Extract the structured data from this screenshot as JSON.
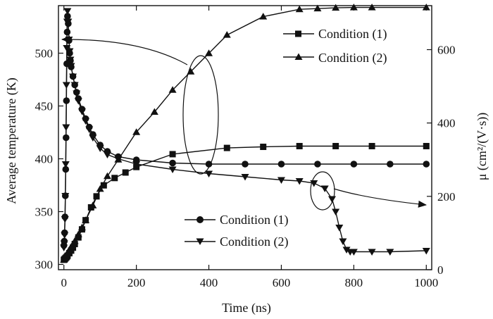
{
  "chart_data": {
    "type": "line",
    "xlabel": "Time (ns)",
    "ylabel_left": "Average temperature (K)",
    "ylabel_right": "μ (cm²/(V·s))",
    "xlim": [
      -15,
      1015
    ],
    "ylim_left": [
      295,
      545
    ],
    "ylim_right": [
      0,
      720
    ],
    "x_ticks": [
      0,
      200,
      400,
      600,
      800,
      1000
    ],
    "y_left_ticks": [
      300,
      350,
      400,
      450,
      500
    ],
    "y_right_ticks": [
      0,
      200,
      400,
      600
    ],
    "grid": false,
    "legend_right": {
      "placement": "top-right",
      "entries": [
        {
          "label": "Condition (1)",
          "marker": "square"
        },
        {
          "label": "Condition (2)",
          "marker": "triangle-up"
        }
      ]
    },
    "legend_left": {
      "placement": "bottom-center",
      "entries": [
        {
          "label": "Condition (1)",
          "marker": "circle"
        },
        {
          "label": "Condition (2)",
          "marker": "triangle-down"
        }
      ]
    },
    "series": [
      {
        "name": "Condition (1)",
        "axis": "right",
        "marker": "square",
        "x": [
          0,
          2,
          4,
          6,
          8,
          10,
          15,
          20,
          25,
          30,
          40,
          50,
          60,
          75,
          90,
          110,
          140,
          170,
          200,
          300,
          450,
          550,
          650,
          750,
          850,
          1000
        ],
        "y": [
          27,
          29,
          31,
          33,
          35,
          38,
          45,
          52,
          60,
          70,
          88,
          110,
          135,
          170,
          200,
          230,
          250,
          265,
          280,
          315,
          332,
          335,
          337,
          337,
          337,
          337
        ]
      },
      {
        "name": "Condition (2)",
        "axis": "right",
        "marker": "triangle-up",
        "x": [
          0,
          2,
          4,
          6,
          8,
          10,
          15,
          20,
          30,
          40,
          50,
          60,
          80,
          100,
          120,
          150,
          200,
          250,
          300,
          350,
          400,
          450,
          550,
          650,
          700,
          750,
          800,
          850,
          1000
        ],
        "y": [
          27,
          30,
          33,
          37,
          41,
          46,
          54,
          62,
          78,
          96,
          115,
          135,
          175,
          220,
          255,
          300,
          375,
          430,
          490,
          540,
          590,
          640,
          690,
          710,
          712,
          714,
          715,
          715,
          715
        ]
      },
      {
        "name": "Condition (1)",
        "axis": "left",
        "marker": "circle",
        "x": [
          0,
          1,
          2,
          3,
          4,
          5,
          6,
          7,
          8,
          9,
          10,
          12,
          14,
          16,
          18,
          20,
          25,
          30,
          35,
          40,
          50,
          60,
          70,
          80,
          100,
          120,
          150,
          200,
          300,
          400,
          500,
          600,
          700,
          800,
          900,
          1000
        ],
        "y": [
          318,
          322,
          330,
          345,
          365,
          390,
          420,
          455,
          490,
          520,
          535,
          528,
          512,
          500,
          493,
          487,
          478,
          470,
          463,
          457,
          447,
          438,
          430,
          423,
          413,
          407,
          402,
          399,
          396,
          395,
          395,
          395,
          395,
          395,
          395,
          395
        ]
      },
      {
        "name": "Condition (2)",
        "axis": "left",
        "marker": "triangle-down",
        "x": [
          0,
          1,
          2,
          3,
          4,
          5,
          6,
          7,
          8,
          9,
          10,
          12,
          14,
          16,
          18,
          20,
          25,
          30,
          35,
          40,
          50,
          60,
          70,
          80,
          100,
          120,
          150,
          200,
          300,
          400,
          500,
          600,
          650,
          690,
          720,
          740,
          750,
          760,
          770,
          780,
          790,
          800,
          850,
          900,
          1000
        ],
        "y": [
          316,
          320,
          328,
          343,
          365,
          395,
          430,
          470,
          505,
          530,
          540,
          530,
          513,
          502,
          494,
          488,
          478,
          470,
          462,
          455,
          445,
          436,
          428,
          420,
          410,
          404,
          400,
          395,
          390,
          386,
          383,
          380,
          379,
          377,
          372,
          362,
          350,
          335,
          322,
          314,
          312,
          312,
          312,
          312,
          313
        ]
      }
    ]
  }
}
